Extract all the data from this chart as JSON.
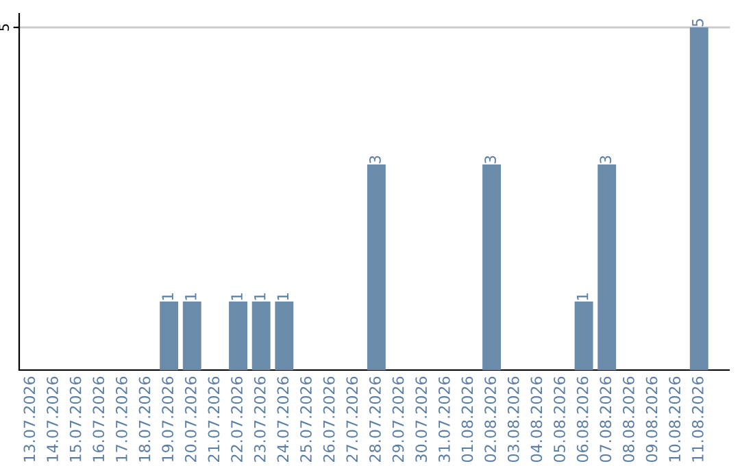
{
  "chart_data": {
    "type": "bar",
    "categories": [
      "13.07.2026",
      "14.07.2026",
      "15.07.2026",
      "16.07.2026",
      "17.07.2026",
      "18.07.2026",
      "19.07.2026",
      "20.07.2026",
      "21.07.2026",
      "22.07.2026",
      "23.07.2026",
      "24.07.2026",
      "25.07.2026",
      "26.07.2026",
      "27.07.2026",
      "28.07.2026",
      "29.07.2026",
      "30.07.2026",
      "31.07.2026",
      "01.08.2026",
      "02.08.2026",
      "03.08.2026",
      "04.08.2026",
      "05.08.2026",
      "06.08.2026",
      "07.08.2026",
      "08.08.2026",
      "09.08.2026",
      "10.08.2026",
      "11.08.2026"
    ],
    "values": [
      0,
      0,
      0,
      0,
      0,
      0,
      1,
      1,
      0,
      1,
      1,
      1,
      0,
      0,
      0,
      3,
      0,
      0,
      0,
      0,
      3,
      0,
      0,
      0,
      1,
      3,
      0,
      0,
      0,
      5
    ],
    "value_labels": [
      null,
      null,
      null,
      null,
      null,
      null,
      "1",
      "1",
      null,
      "1",
      "1",
      "1",
      null,
      null,
      null,
      "3",
      null,
      null,
      null,
      null,
      "3",
      null,
      null,
      null,
      "1",
      "3",
      null,
      null,
      null,
      "5"
    ],
    "color": "#6b8bab",
    "ylim": [
      0,
      5.2
    ],
    "yticks": [
      5
    ],
    "grid": "y"
  }
}
